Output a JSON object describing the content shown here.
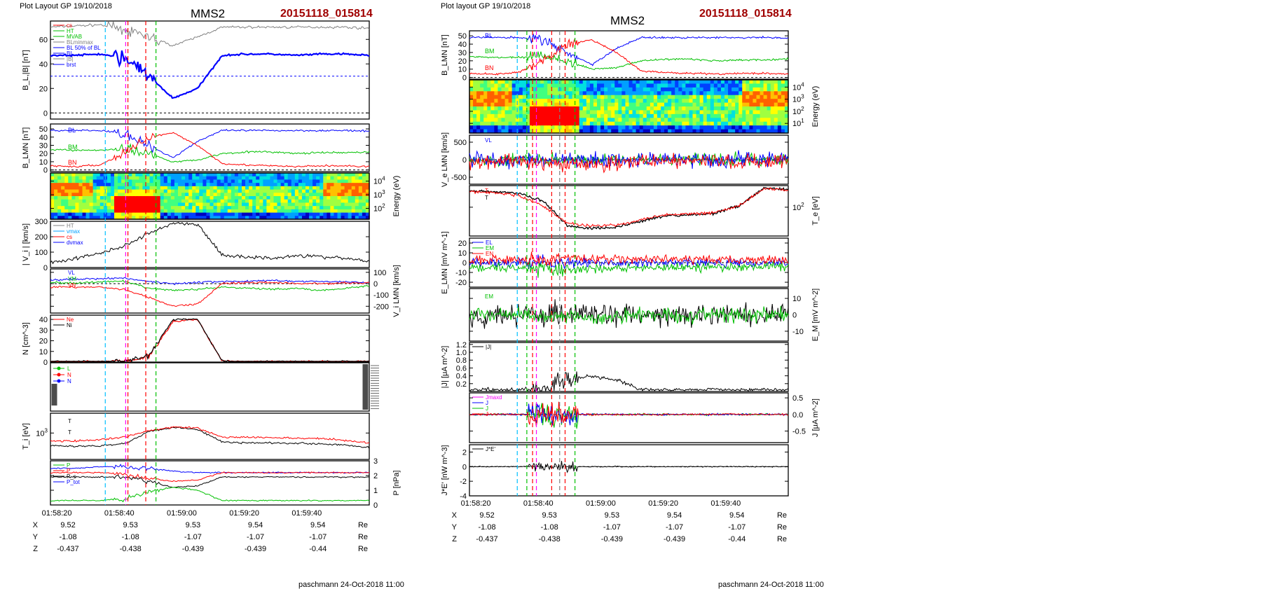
{
  "page": {
    "footer_left": "paschmann 24-Oct-2018 11:00",
    "footer_right": "paschmann 24-Oct-2018 11:00"
  },
  "figures": [
    {
      "header_left": "Plot Layout GP 19/10/2018",
      "title": "MMS2",
      "event_id": "20151118_015814",
      "time_ticks": [
        "01:58:20",
        "01:58:40",
        "01:59:00",
        "01:59:20",
        "01:59:40"
      ],
      "ephemeris": [
        {
          "label": "X",
          "values": [
            "9.52",
            "9.53",
            "9.53",
            "9.54",
            "9.54"
          ],
          "unit": "Re"
        },
        {
          "label": "Y",
          "values": [
            "-1.08",
            "-1.08",
            "-1.07",
            "-1.07",
            "-1.07"
          ],
          "unit": "Re"
        },
        {
          "label": "Z",
          "values": [
            "-0.437",
            "-0.438",
            "-0.439",
            "-0.439",
            "-0.44"
          ],
          "unit": "Re"
        }
      ]
    },
    {
      "header_left": "Plot layout GP 19/10/2018",
      "title": "MMS2",
      "event_id": "20151118_015814",
      "time_ticks": [
        "01:58:20",
        "01:58:40",
        "01:59:00",
        "01:59:20",
        "01:59:40"
      ],
      "ephemeris": [
        {
          "label": "X",
          "values": [
            "9.52",
            "9.53",
            "9.53",
            "9.54",
            "9.54"
          ],
          "unit": "Re"
        },
        {
          "label": "Y",
          "values": [
            "-1.08",
            "-1.08",
            "-1.07",
            "-1.07",
            "-1.07"
          ],
          "unit": "Re"
        },
        {
          "label": "Z",
          "values": [
            "-0.437",
            "-0.438",
            "-0.439",
            "-0.439",
            "-0.44"
          ],
          "unit": "Re"
        }
      ]
    }
  ],
  "colors": {
    "red": "#ff0000",
    "green": "#00c000",
    "blue": "#0000ff",
    "black": "#000000",
    "gray": "#808080",
    "magenta": "#ff00ff",
    "cyan": "#00a0ff",
    "title_red": "#a00000"
  },
  "chart_data": [
    {
      "type": "line",
      "figure": 0,
      "panel": 1,
      "ylabel": "B_L,|B| [nT]",
      "yticks": [
        "60",
        "40",
        "20",
        "0"
      ],
      "ylim": [
        -5,
        75
      ],
      "legend": [
        "cs",
        "HT",
        "MVAB",
        "BLminmax",
        "BL 50% of BL",
        "BL",
        "|B|",
        "brst"
      ],
      "series": [
        {
          "name": "|B|",
          "color": "#808080",
          "values": [
            70,
            71,
            72,
            68,
            62,
            55,
            62,
            70,
            70,
            70,
            70,
            70,
            70,
            69
          ]
        },
        {
          "name": "BL",
          "color": "#0000ff",
          "values": [
            47,
            47,
            48,
            45,
            30,
            12,
            20,
            47,
            48,
            48,
            47,
            48,
            48,
            47
          ]
        }
      ]
    },
    {
      "type": "line",
      "figure": 0,
      "panel": 2,
      "ylabel": "B_LMN [nT]",
      "yticks": [
        "50",
        "40",
        "30",
        "20",
        "10",
        "0"
      ],
      "ylim": [
        -2,
        56
      ],
      "legend": [
        "BL",
        "BM",
        "BN"
      ],
      "series": [
        {
          "name": "BL",
          "color": "#0000ff",
          "values": [
            48,
            48,
            48,
            45,
            30,
            15,
            35,
            48,
            48,
            48,
            48,
            48,
            48,
            47
          ]
        },
        {
          "name": "BM",
          "color": "#00c000",
          "values": [
            25,
            24,
            24,
            26,
            20,
            10,
            12,
            20,
            22,
            22,
            20,
            21,
            21,
            22
          ]
        },
        {
          "name": "BN",
          "color": "#ff0000",
          "values": [
            5,
            4,
            6,
            20,
            40,
            45,
            30,
            8,
            6,
            5,
            4,
            5,
            5,
            4
          ]
        }
      ]
    },
    {
      "type": "heatmap",
      "figure": 0,
      "panel": 3,
      "ylabel": "Energy (eV)",
      "yticks": [
        "10^4",
        "10^3",
        "10^2"
      ]
    },
    {
      "type": "line",
      "figure": 0,
      "panel": 4,
      "ylabel": "| V_i | [km/s]",
      "yticks": [
        "300",
        "200",
        "100",
        "0"
      ],
      "ylim": [
        0,
        300
      ],
      "legend": [
        "HT",
        "vmax",
        "cs",
        "dvmax",
        "V_i"
      ],
      "series": [
        {
          "name": "V_i",
          "color": "#000000",
          "values": [
            30,
            60,
            90,
            140,
            220,
            290,
            280,
            80,
            70,
            60,
            80,
            70,
            60,
            40
          ]
        }
      ]
    },
    {
      "type": "line",
      "figure": 0,
      "panel": 5,
      "ylabel": "V_i LMN [km/s]",
      "yticks": [
        "100",
        "0",
        "-100",
        "-200"
      ],
      "ylim": [
        -260,
        130
      ],
      "legend": [
        "VL",
        "VM",
        "VN"
      ],
      "series": [
        {
          "name": "VL",
          "color": "#0000ff",
          "values": [
            30,
            40,
            45,
            50,
            20,
            0,
            10,
            20,
            20,
            30,
            20,
            20,
            15,
            10
          ]
        },
        {
          "name": "VM",
          "color": "#00c000",
          "values": [
            10,
            5,
            15,
            20,
            -40,
            -60,
            -50,
            -30,
            -40,
            -50,
            -40,
            -60,
            -40,
            -20
          ]
        },
        {
          "name": "VN",
          "color": "#ff0000",
          "values": [
            -30,
            -30,
            -30,
            -50,
            -120,
            -200,
            -180,
            0,
            10,
            10,
            0,
            0,
            5,
            5
          ]
        }
      ]
    },
    {
      "type": "line",
      "figure": 0,
      "panel": 6,
      "ylabel": "N [cm^-3]",
      "yticks": [
        "40",
        "30",
        "20",
        "10",
        "0"
      ],
      "ylim": [
        0,
        44
      ],
      "legend": [
        "Ne",
        "Ni"
      ],
      "series": [
        {
          "name": "Ne",
          "color": "#ff0000",
          "values": [
            0.5,
            0.5,
            0.5,
            1,
            5,
            38,
            40,
            1,
            0.5,
            0.5,
            0.5,
            0.5,
            0.5,
            0.5
          ]
        },
        {
          "name": "Ni",
          "color": "#000000",
          "values": [
            0.5,
            0.5,
            0.5,
            1,
            6,
            40,
            40,
            1,
            0.5,
            0.5,
            0.5,
            0.5,
            0.5,
            0.5
          ]
        }
      ]
    },
    {
      "type": "line",
      "figure": 0,
      "panel": 7,
      "ylabel": "",
      "yticks": [],
      "legend": [
        "L",
        "N",
        "N"
      ]
    },
    {
      "type": "line",
      "figure": 0,
      "panel": 8,
      "ylabel": "T_i [eV]",
      "yticks": [
        "10^3"
      ],
      "legend": [
        "T_par",
        "T_perp"
      ]
    },
    {
      "type": "line",
      "figure": 0,
      "panel": 9,
      "ylabel": "P [nPa]",
      "yticks": [
        "3",
        "2",
        "1",
        "0"
      ],
      "ylim": [
        0,
        3
      ],
      "legend": [
        "P",
        "P",
        "P_s",
        "P_tot"
      ],
      "series": [
        {
          "name": "P_tot",
          "color": "#0000ff",
          "values": [
            2.5,
            2.5,
            2.6,
            2.6,
            2.5,
            2.3,
            2.2,
            2.2,
            2.2,
            2.2,
            2.2,
            2.2,
            2.2,
            2.2
          ]
        },
        {
          "name": "P",
          "color": "#ff0000",
          "values": [
            2.2,
            2.2,
            2.2,
            2.1,
            1.8,
            1.6,
            1.7,
            2.2,
            2.2,
            2.2,
            2.2,
            2.2,
            2.2,
            2.2
          ]
        },
        {
          "name": "P_s",
          "color": "#000000",
          "values": [
            1.9,
            1.9,
            1.9,
            1.9,
            1.6,
            1.2,
            1.3,
            1.9,
            1.9,
            1.9,
            1.9,
            1.9,
            1.9,
            1.9
          ]
        },
        {
          "name": "P",
          "color": "#00c000",
          "values": [
            0.3,
            0.3,
            0.3,
            0.4,
            0.9,
            1.2,
            1.0,
            0.3,
            0.3,
            0.3,
            0.3,
            0.3,
            0.3,
            0.3
          ]
        }
      ]
    },
    {
      "type": "line",
      "figure": 1,
      "panel": 1,
      "ylabel": "B_LMN [nT]",
      "yticks": [
        "50",
        "40",
        "30",
        "20",
        "10",
        "0"
      ],
      "ylim": [
        -2,
        56
      ],
      "legend": [
        "BL",
        "BM",
        "BN"
      ],
      "series": [
        {
          "name": "BL",
          "color": "#0000ff",
          "values": [
            48,
            48,
            48,
            45,
            30,
            15,
            35,
            48,
            48,
            48,
            48,
            48,
            48,
            47
          ]
        },
        {
          "name": "BM",
          "color": "#00c000",
          "values": [
            25,
            24,
            24,
            26,
            20,
            10,
            12,
            20,
            22,
            22,
            20,
            21,
            21,
            22
          ]
        },
        {
          "name": "BN",
          "color": "#ff0000",
          "values": [
            5,
            4,
            6,
            20,
            40,
            45,
            30,
            8,
            6,
            5,
            4,
            5,
            5,
            4
          ]
        }
      ]
    },
    {
      "type": "heatmap",
      "figure": 1,
      "panel": 2,
      "ylabel": "Energy (eV)",
      "yticks": [
        "10^4",
        "10^3",
        "10^2",
        "10^1"
      ]
    },
    {
      "type": "line",
      "figure": 1,
      "panel": 3,
      "ylabel": "V_e LMN [km/s]",
      "yticks": [
        "500",
        "0",
        "-500"
      ],
      "ylim": [
        -700,
        700
      ],
      "legend": [
        "VL"
      ]
    },
    {
      "type": "line",
      "figure": 1,
      "panel": 4,
      "ylabel": "T_e [eV]",
      "yticks": [
        "10^2"
      ],
      "legend": [
        "T_par",
        "T_perp"
      ]
    },
    {
      "type": "line",
      "figure": 1,
      "panel": 5,
      "ylabel": "E_LMN [mV m^-1]",
      "yticks": [
        "20",
        "10",
        "0",
        "-10",
        "-20"
      ],
      "ylim": [
        -25,
        25
      ],
      "legend": [
        "EL",
        "EM",
        "EN"
      ]
    },
    {
      "type": "line",
      "figure": 1,
      "panel": 6,
      "ylabel": "E_M [mV m^-2]",
      "yticks": [
        "10",
        "0",
        "-10"
      ],
      "ylim": [
        -16,
        16
      ],
      "legend": [
        "EM"
      ]
    },
    {
      "type": "line",
      "figure": 1,
      "panel": 7,
      "ylabel": "|J| [μA m^-2]",
      "yticks": [
        "1.2",
        "1.0",
        "0.8",
        "0.6",
        "0.4",
        "0.2"
      ],
      "ylim": [
        0,
        1.25
      ],
      "legend": [
        "|J|"
      ]
    },
    {
      "type": "line",
      "figure": 1,
      "panel": 8,
      "ylabel": "J [μA m^-2]",
      "yticks": [
        "0.5",
        "0.0",
        "-0.5"
      ],
      "ylim": [
        -0.85,
        0.65
      ],
      "legend": [
        "Jmaxd",
        "J",
        "J",
        "J"
      ]
    },
    {
      "type": "line",
      "figure": 1,
      "panel": 9,
      "ylabel": "J*E' [nW m^-3]",
      "yticks": [
        "2",
        "0",
        "-2",
        "-4"
      ],
      "ylim": [
        -4,
        3
      ],
      "legend": [
        "J*E'"
      ]
    }
  ]
}
